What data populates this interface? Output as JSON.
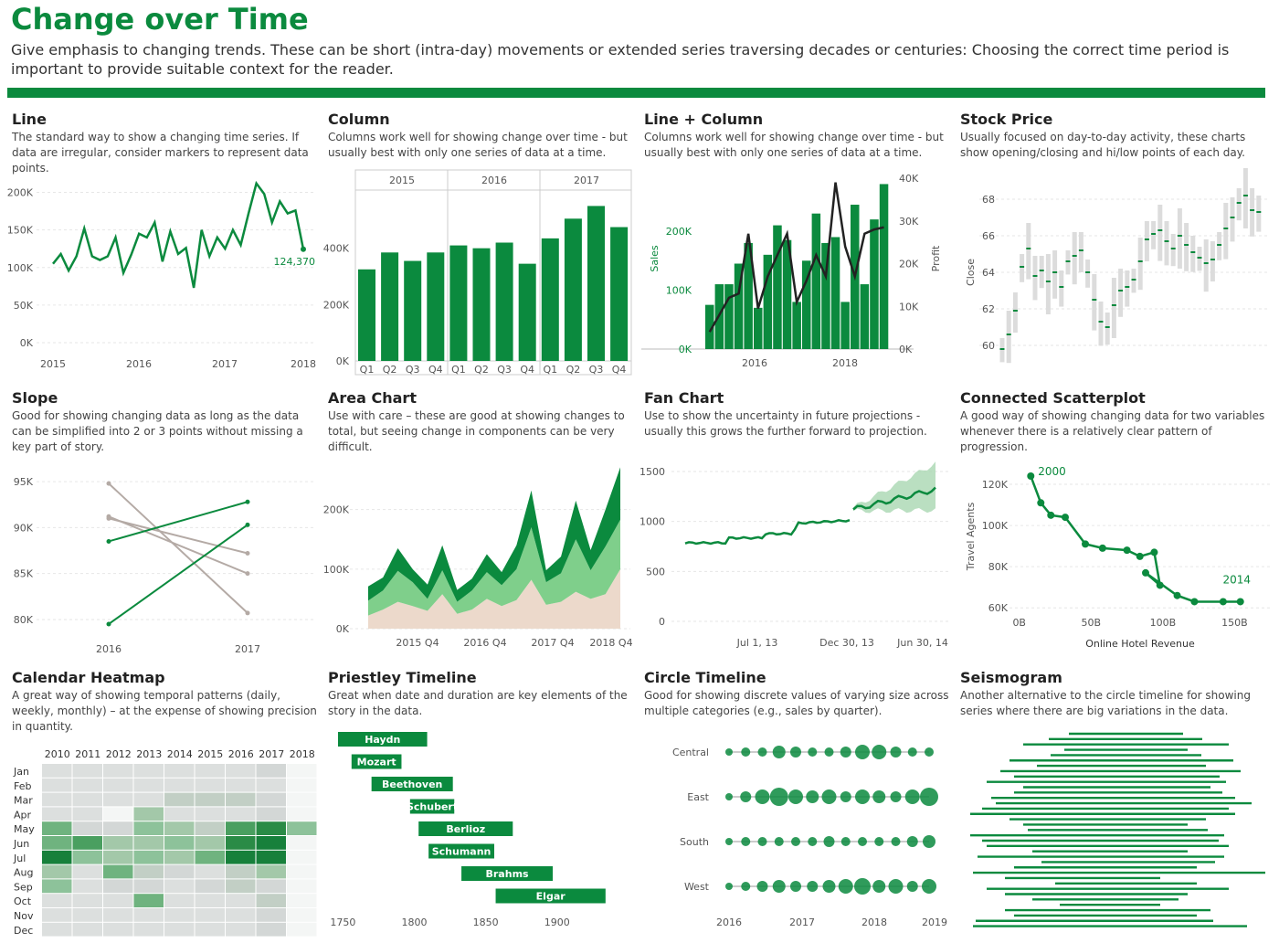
{
  "header": {
    "title": "Change over Time",
    "subtitle": "Give emphasis to changing trends. These can be short (intra-day) movements or extended series traversing decades or centuries: Choosing the correct time period is important to provide suitable context for the reader."
  },
  "colors": {
    "green": "#0b8a3e",
    "light_green": "#7fcf8b",
    "beige": "#ecd9cb",
    "grey": "#b4aaa5",
    "band": "#a9d7b2"
  },
  "panels": {
    "line": {
      "title": "Line",
      "desc": "The standard way to show a changing time series. If data are irregular, consider markers to represent data points."
    },
    "column": {
      "title": "Column",
      "desc": "Columns work well for showing change over time - but usually best with only one series of data at a time."
    },
    "linecolumn": {
      "title": "Line + Column",
      "desc": "Columns work well for showing change over time - but usually best with only one series of data at a time."
    },
    "stock": {
      "title": "Stock Price",
      "desc": "Usually focused on day-to-day activity, these charts show opening/closing and hi/low points of each day."
    },
    "slope": {
      "title": "Slope",
      "desc": "Good for showing changing data as long as the data can be simplified into 2 or 3 points without missing a key part of story."
    },
    "area": {
      "title": "Area Chart",
      "desc": "Use with care – these are good at showing changes to total, but seeing change in components can be very difficult."
    },
    "fan": {
      "title": "Fan Chart",
      "desc": "Use to show the uncertainty in future projections - usually this grows the further forward to projection."
    },
    "scatter": {
      "title": "Connected Scatterplot",
      "desc": "A good way of showing changing data for two variables whenever there is a relatively clear pattern of progression."
    },
    "calendar": {
      "title": "Calendar Heatmap",
      "desc": "A great way of showing temporal patterns (daily, weekly, monthly) – at the expense of showing precision in quantity."
    },
    "priestley": {
      "title": "Priestley Timeline",
      "desc": "Great when date and duration are key elements of the story in the data."
    },
    "circle": {
      "title": "Circle Timeline",
      "desc": "Good for showing discrete values of varying size across multiple categories (e.g., sales by quarter)."
    },
    "seismo": {
      "title": "Seismogram",
      "desc": "Another alternative to the circle timeline for showing series where there are big variations in the data."
    }
  },
  "chart_data": [
    {
      "id": "line",
      "type": "line",
      "yticks": [
        "0K",
        "50K",
        "100K",
        "150K",
        "200K"
      ],
      "ytick_values": [
        0,
        50000,
        100000,
        150000,
        200000
      ],
      "xticks": [
        "2015",
        "2016",
        "2017",
        "2018"
      ],
      "values": [
        105000,
        118000,
        96000,
        115000,
        152000,
        115000,
        110000,
        115000,
        140000,
        93000,
        117000,
        145000,
        140000,
        160000,
        108000,
        148000,
        118000,
        126000,
        73000,
        150000,
        115000,
        140000,
        125000,
        150000,
        130000,
        172000,
        212000,
        198000,
        160000,
        188000,
        172000,
        176000,
        124370
      ],
      "end_label": "124,370",
      "ylim": [
        0,
        225000
      ]
    },
    {
      "id": "column",
      "type": "bar",
      "years": [
        "2015",
        "2016",
        "2017"
      ],
      "quarters": [
        "Q1",
        "Q2",
        "Q3",
        "Q4",
        "Q1",
        "Q2",
        "Q3",
        "Q4",
        "Q1",
        "Q2",
        "Q3",
        "Q4"
      ],
      "yticks": [
        "0K",
        "200K",
        "400K"
      ],
      "ytick_values": [
        0,
        200000,
        400000
      ],
      "values": [
        325000,
        385000,
        355000,
        385000,
        410000,
        400000,
        420000,
        345000,
        435000,
        505000,
        550000,
        475000
      ],
      "ylim": [
        0,
        600000
      ]
    },
    {
      "id": "linecolumn",
      "type": "bar",
      "xticks": [
        "2016",
        "2018"
      ],
      "ylabel": "Sales",
      "y2label": "Profit",
      "yticks": [
        "0K",
        "100K",
        "200K"
      ],
      "ytick_values": [
        0,
        100000,
        200000
      ],
      "y2ticks": [
        "0K",
        "10K",
        "20K",
        "30K",
        "40K"
      ],
      "y2tick_values": [
        0,
        10000,
        20000,
        30000,
        40000
      ],
      "bars": [
        75000,
        110000,
        110000,
        145000,
        180000,
        70000,
        160000,
        210000,
        185000,
        80000,
        150000,
        230000,
        180000,
        190000,
        80000,
        245000,
        110000,
        220000,
        280000
      ],
      "line": [
        4000,
        8000,
        12000,
        13000,
        27000,
        9500,
        17000,
        22000,
        27000,
        11000,
        16000,
        22000,
        17000,
        39000,
        24000,
        17000,
        27000,
        28000,
        28500
      ],
      "ylim": [
        0,
        290000
      ],
      "y2lim": [
        0,
        40000
      ]
    },
    {
      "id": "stock",
      "type": "scatter",
      "ylabel": "Close",
      "yticks": [
        "60",
        "62",
        "64",
        "66",
        "68"
      ],
      "ytick_values": [
        60,
        62,
        64,
        66,
        68
      ],
      "ylim": [
        59,
        69
      ]
    },
    {
      "id": "slope",
      "type": "line",
      "xticks": [
        "2016",
        "2017"
      ],
      "yticks": [
        "80K",
        "85K",
        "90K",
        "95K"
      ],
      "ytick_values": [
        80000,
        85000,
        90000,
        95000
      ],
      "series": [
        {
          "values": [
            79500,
            90300
          ],
          "color": "green"
        },
        {
          "values": [
            88500,
            92800
          ],
          "color": "green"
        },
        {
          "values": [
            94800,
            80700
          ],
          "color": "grey"
        },
        {
          "values": [
            91200,
            85000
          ],
          "color": "grey"
        },
        {
          "values": [
            91000,
            87200
          ],
          "color": "grey"
        }
      ],
      "ylim": [
        79000,
        96500
      ]
    },
    {
      "id": "area",
      "type": "area",
      "xticks": [
        "2015 Q4",
        "2016 Q4",
        "2017 Q4",
        "2018 Q4"
      ],
      "yticks": [
        "0K",
        "100K",
        "200K"
      ],
      "ytick_values": [
        0,
        100000,
        200000
      ],
      "ylim": [
        0,
        270000
      ],
      "series": [
        {
          "name": "bottom",
          "values": [
            22000,
            32000,
            45000,
            38000,
            30000,
            58000,
            25000,
            32000,
            50000,
            38000,
            48000,
            82000,
            40000,
            45000,
            62000,
            50000,
            58000,
            100000
          ]
        },
        {
          "name": "middle",
          "values": [
            25000,
            32000,
            52000,
            40000,
            20000,
            40000,
            20000,
            32000,
            45000,
            35000,
            52000,
            88000,
            38000,
            48000,
            88000,
            48000,
            80000,
            83000
          ]
        },
        {
          "name": "top",
          "values": [
            24000,
            22000,
            38000,
            22000,
            24000,
            42000,
            20000,
            20000,
            30000,
            22000,
            40000,
            62000,
            20000,
            28000,
            65000,
            34000,
            62000,
            88000
          ]
        }
      ]
    },
    {
      "id": "fan",
      "type": "area",
      "xticks": [
        "Jul 1, 13",
        "Dec 30, 13",
        "Jun 30, 14"
      ],
      "yticks": [
        "0",
        "500",
        "1000",
        "1500"
      ],
      "ytick_values": [
        0,
        500,
        1000,
        1500
      ],
      "ylim": [
        0,
        1600
      ]
    },
    {
      "id": "scatter",
      "type": "scatter",
      "xlabel": "Online Hotel Revenue",
      "ylabel": "Travel Agents",
      "xticks": [
        "0B",
        "50B",
        "100B",
        "150B"
      ],
      "xtick_values": [
        0,
        50,
        100,
        150
      ],
      "yticks": [
        "60K",
        "80K",
        "100K",
        "120K"
      ],
      "ytick_values": [
        60000,
        80000,
        100000,
        120000
      ],
      "points": [
        [
          8,
          124000
        ],
        [
          15,
          111000
        ],
        [
          22,
          105000
        ],
        [
          32,
          104000
        ],
        [
          46,
          91000
        ],
        [
          58,
          89000
        ],
        [
          75,
          88000
        ],
        [
          84,
          85000
        ],
        [
          94,
          87000
        ],
        [
          98,
          71000
        ],
        [
          88,
          77000
        ],
        [
          110,
          66000
        ],
        [
          122,
          63000
        ],
        [
          142,
          63000
        ],
        [
          154,
          63000
        ]
      ],
      "start_label": "2000",
      "end_label": "2014",
      "xlim": [
        -10,
        165
      ],
      "ylim": [
        57000,
        128000
      ]
    },
    {
      "id": "calendar",
      "type": "heatmap",
      "years": [
        "2010",
        "2011",
        "2012",
        "2013",
        "2014",
        "2015",
        "2016",
        "2017",
        "2018"
      ],
      "months": [
        "Jan",
        "Feb",
        "Mar",
        "Apr",
        "May",
        "Jun",
        "Jul",
        "Aug",
        "Sep",
        "Oct",
        "Nov",
        "Dec"
      ],
      "values": [
        [
          1,
          1,
          1,
          1,
          1,
          1,
          1,
          2,
          0
        ],
        [
          1,
          1,
          1,
          1,
          1,
          1,
          1,
          1,
          0
        ],
        [
          1,
          1,
          1,
          1,
          3,
          3,
          3,
          2,
          0
        ],
        [
          1,
          1,
          0,
          4,
          1,
          1,
          1,
          2,
          0
        ],
        [
          6,
          2,
          2,
          5,
          4,
          3,
          7,
          8,
          5
        ],
        [
          6,
          7,
          4,
          4,
          5,
          4,
          8,
          9,
          0
        ],
        [
          9,
          5,
          4,
          5,
          4,
          6,
          9,
          9,
          0
        ],
        [
          4,
          1,
          6,
          3,
          2,
          1,
          3,
          4,
          0
        ],
        [
          5,
          1,
          2,
          2,
          1,
          2,
          3,
          2,
          0
        ],
        [
          1,
          1,
          1,
          6,
          1,
          1,
          1,
          3,
          0
        ],
        [
          1,
          1,
          1,
          1,
          1,
          1,
          1,
          2,
          0
        ],
        [
          1,
          1,
          1,
          1,
          1,
          1,
          1,
          2,
          0
        ]
      ]
    },
    {
      "id": "priestley",
      "type": "bar",
      "xticks": [
        "1750",
        "1800",
        "1850",
        "1900"
      ],
      "xtick_values": [
        1750,
        1800,
        1850,
        1900
      ],
      "xlim": [
        1735,
        1945
      ],
      "items": [
        {
          "name": "Haydn",
          "start": 1732,
          "end": 1809
        },
        {
          "name": "Mozart",
          "start": 1756,
          "end": 1791
        },
        {
          "name": "Beethoven",
          "start": 1770,
          "end": 1827
        },
        {
          "name": "Schubert",
          "start": 1797,
          "end": 1828
        },
        {
          "name": "Berlioz",
          "start": 1803,
          "end": 1869
        },
        {
          "name": "Schumann",
          "start": 1810,
          "end": 1856
        },
        {
          "name": "Brahms",
          "start": 1833,
          "end": 1897
        },
        {
          "name": "Elgar",
          "start": 1857,
          "end": 1934
        }
      ]
    },
    {
      "id": "circle",
      "type": "scatter",
      "categories": [
        "Central",
        "East",
        "South",
        "West"
      ],
      "xticks": [
        "2016",
        "2017",
        "2018",
        "2019"
      ],
      "values": [
        [
          3,
          4,
          4,
          6,
          5,
          4,
          4,
          5,
          7,
          7,
          5,
          4,
          4
        ],
        [
          3,
          5,
          7,
          9,
          7,
          6,
          7,
          5,
          7,
          6,
          5,
          7,
          9
        ],
        [
          3,
          4,
          4,
          4,
          4,
          4,
          5,
          4,
          4,
          4,
          4,
          5,
          6
        ],
        [
          3,
          4,
          5,
          6,
          5,
          5,
          6,
          7,
          8,
          6,
          7,
          5,
          7
        ]
      ]
    },
    {
      "id": "seismo",
      "type": "bar",
      "values": [
        [
          1170,
          1295
        ],
        [
          1148,
          1316
        ],
        [
          1120,
          1345
        ],
        [
          1165,
          1300
        ],
        [
          1150,
          1315
        ],
        [
          1105,
          1350
        ],
        [
          1135,
          1320
        ],
        [
          1095,
          1358
        ],
        [
          1110,
          1335
        ],
        [
          1080,
          1342
        ],
        [
          1120,
          1325
        ],
        [
          1110,
          1338
        ],
        [
          1085,
          1352
        ],
        [
          1090,
          1370
        ],
        [
          1075,
          1345
        ],
        [
          1062,
          1352
        ],
        [
          1105,
          1320
        ],
        [
          1120,
          1300
        ],
        [
          1125,
          1322
        ],
        [
          1062,
          1340
        ],
        [
          1075,
          1334
        ],
        [
          1080,
          1345
        ],
        [
          1130,
          1300
        ],
        [
          1070,
          1340
        ],
        [
          1140,
          1330
        ],
        [
          1110,
          1310
        ],
        [
          1065,
          1385
        ],
        [
          1100,
          1270
        ],
        [
          1155,
          1310
        ],
        [
          1080,
          1345
        ],
        [
          1100,
          1300
        ],
        [
          1130,
          1290
        ],
        [
          1160,
          1270
        ],
        [
          1100,
          1325
        ],
        [
          1110,
          1310
        ],
        [
          1068,
          1328
        ],
        [
          1065,
          1365
        ]
      ]
    }
  ]
}
